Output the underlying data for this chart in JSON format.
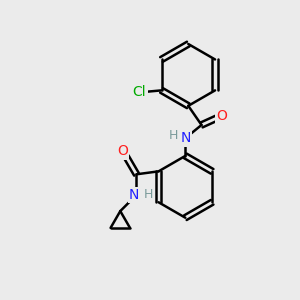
{
  "background_color": "#ebebeb",
  "bond_color": "#000000",
  "bond_width": 1.8,
  "dbo": 0.08,
  "atom_colors": {
    "N": "#2020ff",
    "O": "#ff2020",
    "Cl": "#00aa00",
    "H": "#7a9a9a"
  },
  "font_size_atom": 10,
  "font_size_h": 9
}
